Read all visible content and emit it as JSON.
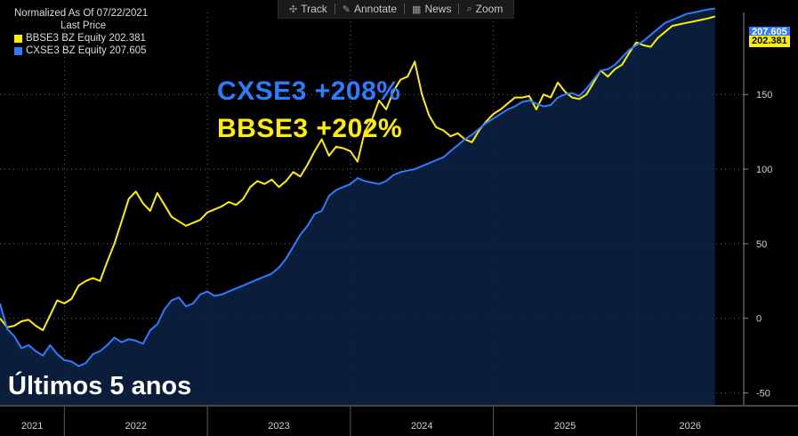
{
  "toolbar": {
    "track": "Track",
    "annotate": "Annotate",
    "news": "News",
    "zoom": "Zoom"
  },
  "legend": {
    "header": "Normalized As Of 07/22/2021",
    "subheader": "Last Price",
    "items": [
      {
        "label": "BBSE3 BZ Equity",
        "value": "202.381",
        "color": "#ffee00"
      },
      {
        "label": "CXSE3 BZ Equity",
        "value": "207.605",
        "color": "#2d7bff"
      }
    ]
  },
  "overlay": {
    "cxse": "CXSE3 +208%",
    "bbse": "BBSE3 +202%",
    "period": "Últimos 5 anos"
  },
  "price_tags": {
    "cxse": "207.605",
    "bbse": "202.381"
  },
  "chart_data": {
    "type": "line",
    "title": "",
    "xlabel": "",
    "ylabel": "",
    "x_tick_labels": [
      "2021",
      "2022",
      "2023",
      "2024",
      "2025",
      "2026"
    ],
    "y_ticks": [
      -50,
      0,
      50,
      100,
      150
    ],
    "ylim": [
      -58,
      205
    ],
    "xlim": [
      2021.55,
      2026.75
    ],
    "grid": true,
    "legend_position": "top-left",
    "series": [
      {
        "name": "BBSE3 BZ Equity",
        "color": "#ffee00",
        "x": [
          2021.55,
          2021.6,
          2021.65,
          2021.7,
          2021.75,
          2021.8,
          2021.85,
          2021.9,
          2021.95,
          2022.0,
          2022.05,
          2022.1,
          2022.15,
          2022.2,
          2022.25,
          2022.3,
          2022.35,
          2022.4,
          2022.45,
          2022.5,
          2022.55,
          2022.6,
          2022.65,
          2022.7,
          2022.75,
          2022.8,
          2022.85,
          2022.9,
          2022.95,
          2023.0,
          2023.05,
          2023.1,
          2023.15,
          2023.2,
          2023.25,
          2023.3,
          2023.35,
          2023.4,
          2023.45,
          2023.5,
          2023.55,
          2023.6,
          2023.65,
          2023.7,
          2023.75,
          2023.8,
          2023.85,
          2023.9,
          2023.95,
          2024.0,
          2024.05,
          2024.1,
          2024.15,
          2024.2,
          2024.25,
          2024.3,
          2024.35,
          2024.4,
          2024.45,
          2024.5,
          2024.55,
          2024.6,
          2024.65,
          2024.7,
          2024.75,
          2024.8,
          2024.85,
          2024.9,
          2024.95,
          2025.0,
          2025.05,
          2025.1,
          2025.15,
          2025.2,
          2025.25,
          2025.3,
          2025.35,
          2025.4,
          2025.45,
          2025.5,
          2025.55,
          2025.6,
          2025.65,
          2025.7,
          2025.75,
          2025.8,
          2025.85,
          2025.9,
          2025.95,
          2026.0,
          2026.05,
          2026.1,
          2026.15,
          2026.2,
          2026.25,
          2026.3,
          2026.35,
          2026.4,
          2026.45,
          2026.5,
          2026.55
        ],
        "values": [
          0,
          -6,
          -5,
          -2,
          -1,
          -5,
          -8,
          2,
          12,
          10,
          13,
          22,
          25,
          27,
          25,
          38,
          50,
          65,
          80,
          85,
          77,
          72,
          84,
          76,
          68,
          65,
          62,
          64,
          66,
          71,
          73,
          75,
          78,
          76,
          80,
          88,
          92,
          90,
          93,
          88,
          92,
          98,
          95,
          103,
          112,
          120,
          109,
          115,
          114,
          112,
          105,
          125,
          133,
          146,
          140,
          152,
          160,
          162,
          172,
          150,
          136,
          128,
          126,
          122,
          124,
          120,
          118,
          126,
          132,
          137,
          140,
          144,
          148,
          148,
          149,
          140,
          150,
          148,
          158,
          152,
          148,
          147,
          150,
          158,
          166,
          162,
          167,
          170,
          178,
          185,
          183,
          182,
          188,
          192,
          196,
          197,
          198,
          199,
          200,
          201,
          202.381
        ]
      },
      {
        "name": "CXSE3 BZ Equity",
        "color": "#2d7bff",
        "x": [
          2021.55,
          2021.6,
          2021.65,
          2021.7,
          2021.75,
          2021.8,
          2021.85,
          2021.9,
          2021.95,
          2022.0,
          2022.05,
          2022.1,
          2022.15,
          2022.2,
          2022.25,
          2022.3,
          2022.35,
          2022.4,
          2022.45,
          2022.5,
          2022.55,
          2022.6,
          2022.65,
          2022.7,
          2022.75,
          2022.8,
          2022.85,
          2022.9,
          2022.95,
          2023.0,
          2023.05,
          2023.1,
          2023.15,
          2023.2,
          2023.25,
          2023.3,
          2023.35,
          2023.4,
          2023.45,
          2023.5,
          2023.55,
          2023.6,
          2023.65,
          2023.7,
          2023.75,
          2023.8,
          2023.85,
          2023.9,
          2023.95,
          2024.0,
          2024.05,
          2024.1,
          2024.15,
          2024.2,
          2024.25,
          2024.3,
          2024.35,
          2024.4,
          2024.45,
          2024.5,
          2024.55,
          2024.6,
          2024.65,
          2024.7,
          2024.75,
          2024.8,
          2024.85,
          2024.9,
          2024.95,
          2025.0,
          2025.05,
          2025.1,
          2025.15,
          2025.2,
          2025.25,
          2025.3,
          2025.35,
          2025.4,
          2025.45,
          2025.5,
          2025.55,
          2025.6,
          2025.65,
          2025.7,
          2025.75,
          2025.8,
          2025.85,
          2025.9,
          2025.95,
          2026.0,
          2026.05,
          2026.1,
          2026.15,
          2026.2,
          2026.25,
          2026.3,
          2026.35,
          2026.4,
          2026.45,
          2026.5,
          2026.55
        ],
        "values": [
          10,
          -7,
          -12,
          -20,
          -18,
          -22,
          -25,
          -18,
          -24,
          -28,
          -29,
          -32,
          -30,
          -24,
          -22,
          -18,
          -13,
          -16,
          -14,
          -15,
          -17,
          -8,
          -4,
          6,
          12,
          14,
          8,
          10,
          16,
          18,
          15,
          16,
          18,
          20,
          22,
          24,
          26,
          28,
          30,
          34,
          40,
          48,
          56,
          62,
          70,
          72,
          82,
          86,
          88,
          90,
          94,
          92,
          91,
          90,
          92,
          96,
          98,
          99,
          100,
          102,
          104,
          106,
          108,
          112,
          116,
          120,
          123,
          127,
          131,
          134,
          137,
          140,
          142,
          145,
          146,
          144,
          142,
          143,
          148,
          150,
          151,
          149,
          154,
          160,
          166,
          167,
          170,
          175,
          180,
          183,
          186,
          190,
          194,
          198,
          200,
          202,
          204,
          205,
          206,
          207,
          207.605
        ]
      }
    ]
  }
}
